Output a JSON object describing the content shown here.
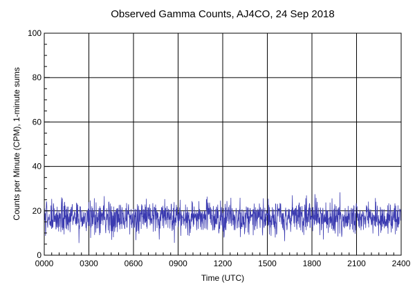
{
  "chart_data": {
    "type": "line",
    "title": "Observed Gamma Counts, AJ4CO, 24 Sep 2018",
    "xlabel": "Time (UTC)",
    "ylabel": "Counts per Minute (CPM), 1-minute sums",
    "xlim": [
      0,
      1440
    ],
    "ylim": [
      0,
      100
    ],
    "x_ticks": [
      0,
      180,
      360,
      540,
      720,
      900,
      1080,
      1260,
      1440
    ],
    "x_tick_labels": [
      "0000",
      "0300",
      "0600",
      "0900",
      "1200",
      "1500",
      "1800",
      "2100",
      "2400"
    ],
    "y_ticks": [
      0,
      20,
      40,
      60,
      80,
      100
    ],
    "y_tick_labels": [
      "0",
      "20",
      "40",
      "60",
      "80",
      "100"
    ],
    "grid": true,
    "colors": {
      "series": "#3a3ab0",
      "grid": "#000000",
      "axes": "#000000"
    },
    "series": [
      {
        "y_hourly": [
          17,
          17,
          17,
          17,
          17,
          17,
          17,
          17,
          17,
          17,
          17,
          17,
          17,
          17,
          17,
          17,
          17,
          17,
          17,
          17,
          17,
          17,
          17,
          17
        ],
        "typical_range": [
          10,
          26
        ],
        "min": 5,
        "max": 30
      }
    ]
  }
}
